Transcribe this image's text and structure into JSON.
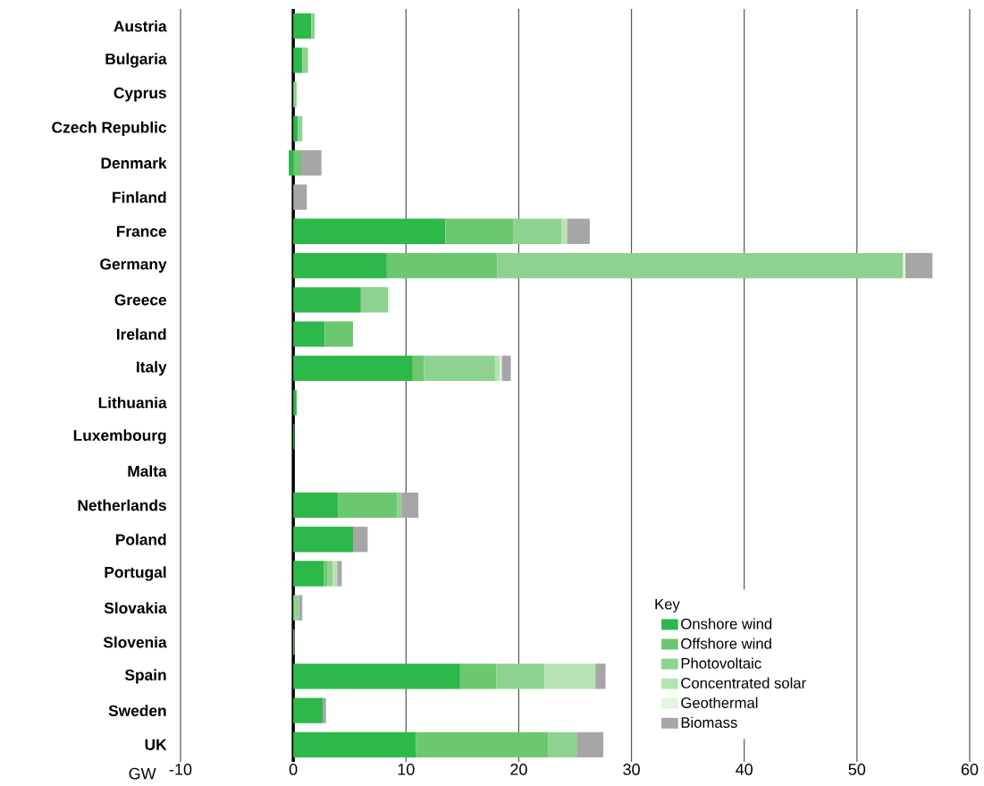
{
  "chart_data": {
    "type": "bar",
    "orientation": "horizontal",
    "stacked": true,
    "xlabel": "GW",
    "legend_title": "Key",
    "categories": [
      "Austria",
      "Bulgaria",
      "Cyprus",
      "Czech Republic",
      "Denmark",
      "Finland",
      "France",
      "Germany",
      "Greece",
      "Ireland",
      "Italy",
      "Lithuania",
      "Luxembourg",
      "Malta",
      "Netherlands",
      "Poland",
      "Portugal",
      "Slovakia",
      "Slovenia",
      "Spain",
      "Sweden",
      "UK"
    ],
    "series": [
      {
        "name": "Onshore wind",
        "color": "#2db84a",
        "values": [
          1.6,
          0.8,
          null,
          0.4,
          -0.4,
          null,
          13.5,
          8.3,
          6.0,
          2.8,
          10.6,
          0.3,
          0.1,
          null,
          4.0,
          5.3,
          2.7,
          null,
          null,
          14.8,
          2.6,
          10.9
        ]
      },
      {
        "name": "Offshore wind",
        "color": "#6cc771",
        "values": [
          null,
          null,
          null,
          null,
          0.7,
          null,
          6.0,
          9.8,
          null,
          2.5,
          1.0,
          null,
          null,
          null,
          5.2,
          null,
          0.3,
          null,
          null,
          3.2,
          null,
          11.7
        ]
      },
      {
        "name": "Photovoltaic",
        "color": "#8fd18f",
        "values": [
          0.3,
          0.5,
          0.3,
          0.4,
          null,
          null,
          4.3,
          36.0,
          2.4,
          null,
          6.3,
          null,
          null,
          null,
          0.4,
          null,
          0.5,
          0.5,
          0.1,
          4.3,
          null,
          2.6
        ]
      },
      {
        "name": "Concentrated solar",
        "color": "#b7e3b3",
        "values": [
          null,
          null,
          null,
          null,
          null,
          null,
          0.5,
          null,
          null,
          null,
          0.4,
          null,
          null,
          null,
          null,
          null,
          0.4,
          null,
          null,
          4.5,
          null,
          null
        ]
      },
      {
        "name": "Geothermal",
        "color": "#e2f3e0",
        "values": [
          null,
          null,
          null,
          null,
          null,
          null,
          null,
          0.2,
          0.2,
          null,
          0.2,
          null,
          null,
          null,
          null,
          null,
          null,
          null,
          null,
          null,
          null,
          null
        ]
      },
      {
        "name": "Biomass",
        "color": "#a6a6a6",
        "values": [
          null,
          null,
          null,
          null,
          1.8,
          1.2,
          2.0,
          2.4,
          null,
          null,
          0.8,
          null,
          null,
          null,
          1.5,
          1.3,
          0.4,
          0.3,
          null,
          0.9,
          0.3,
          2.3
        ]
      }
    ],
    "xlim": [
      -10,
      60
    ],
    "xticks": [
      -10,
      0,
      10,
      20,
      30,
      40,
      50,
      60
    ],
    "grid": "x",
    "ref_lines": [
      {
        "axis": "x",
        "value": 0,
        "color": "#000000"
      }
    ],
    "legend": "bottom right"
  }
}
